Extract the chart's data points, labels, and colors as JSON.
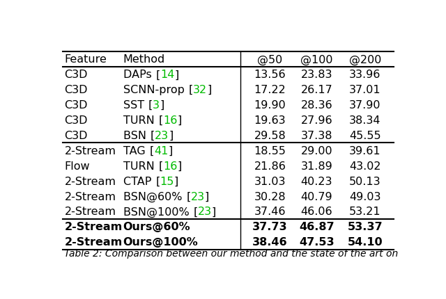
{
  "caption": "Table 2: Comparison between our method and the state of the art on",
  "columns": [
    "Feature",
    "Method",
    "@50",
    "@100",
    "@200"
  ],
  "rows": [
    {
      "feature": "C3D",
      "method": "DAPs ",
      "ref": "[14]",
      "at50": "13.56",
      "at100": "23.83",
      "at200": "33.96",
      "bold": false
    },
    {
      "feature": "C3D",
      "method": "SCNN-prop ",
      "ref": "[32]",
      "at50": "17.22",
      "at100": "26.17",
      "at200": "37.01",
      "bold": false
    },
    {
      "feature": "C3D",
      "method": "SST ",
      "ref": "[3]",
      "at50": "19.90",
      "at100": "28.36",
      "at200": "37.90",
      "bold": false
    },
    {
      "feature": "C3D",
      "method": "TURN ",
      "ref": "[16]",
      "at50": "19.63",
      "at100": "27.96",
      "at200": "38.34",
      "bold": false
    },
    {
      "feature": "C3D",
      "method": "BSN ",
      "ref": "[23]",
      "at50": "29.58",
      "at100": "37.38",
      "at200": "45.55",
      "bold": false
    },
    {
      "feature": "2-Stream",
      "method": "TAG ",
      "ref": "[41]",
      "at50": "18.55",
      "at100": "29.00",
      "at200": "39.61",
      "bold": false
    },
    {
      "feature": "Flow",
      "method": "TURN ",
      "ref": "[16]",
      "at50": "21.86",
      "at100": "31.89",
      "at200": "43.02",
      "bold": false
    },
    {
      "feature": "2-Stream",
      "method": "CTAP ",
      "ref": "[15]",
      "at50": "31.03",
      "at100": "40.23",
      "at200": "50.13",
      "bold": false
    },
    {
      "feature": "2-Stream",
      "method": "BSN@60% ",
      "ref": "[23]",
      "at50": "30.28",
      "at100": "40.79",
      "at200": "49.03",
      "bold": false
    },
    {
      "feature": "2-Stream",
      "method": "BSN@100% ",
      "ref": "[23]",
      "at50": "37.46",
      "at100": "46.06",
      "at200": "53.21",
      "bold": false
    },
    {
      "feature": "2-Stream",
      "method": "Ours@60%",
      "ref": "",
      "at50": "37.73",
      "at100": "46.87",
      "at200": "53.37",
      "bold": true
    },
    {
      "feature": "2-Stream",
      "method": "Ours@100%",
      "ref": "",
      "at50": "38.46",
      "at100": "47.53",
      "at200": "54.10",
      "bold": true
    }
  ],
  "section_breaks_after": [
    4,
    9
  ],
  "text_color": "#000000",
  "ref_color": "#00bb00",
  "bg_color": "#ffffff",
  "fontsize": 11.5
}
